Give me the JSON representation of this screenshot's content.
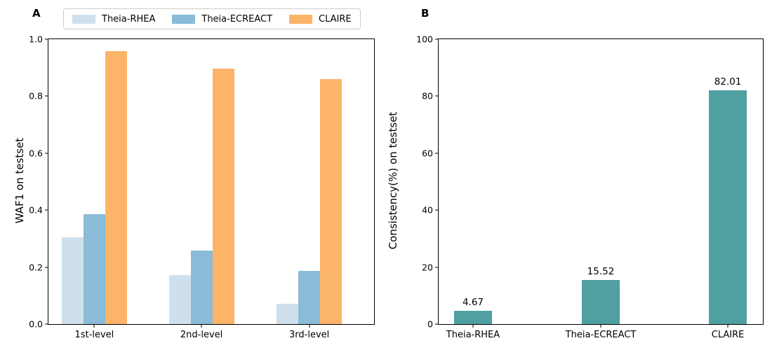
{
  "figure": {
    "background": "#ffffff",
    "axis_color": "#000000",
    "legend_border_color": "#cccccc"
  },
  "chart_data": [
    {
      "type": "bar",
      "panel_label": "A",
      "categories": [
        "1st-level",
        "2nd-level",
        "3rd-level"
      ],
      "series": [
        {
          "name": "Theia-RHEA",
          "color": "#cfe0ec",
          "values": [
            0.305,
            0.172,
            0.072
          ]
        },
        {
          "name": "Theia-ECREACT",
          "color": "#8abbd7",
          "values": [
            0.385,
            0.258,
            0.186
          ]
        },
        {
          "name": "CLAIRE",
          "color": "#fcb469",
          "values": [
            0.958,
            0.898,
            0.86
          ]
        }
      ],
      "xlabel": "",
      "ylabel": "WAF1 on testset",
      "ylim": [
        0,
        1.0
      ],
      "yticks": [
        "0.0",
        "0.2",
        "0.4",
        "0.6",
        "0.8",
        "1.0"
      ],
      "legend_position": "top",
      "grid": false
    },
    {
      "type": "bar",
      "panel_label": "B",
      "categories": [
        "Theia-RHEA",
        "Theia-ECREACT",
        "CLAIRE"
      ],
      "values": [
        4.67,
        15.52,
        82.01
      ],
      "value_labels": [
        "4.67",
        "15.52",
        "82.01"
      ],
      "bar_color": "#50a0a2",
      "xlabel": "",
      "ylabel": "Consistency(%) on testset",
      "ylim": [
        0,
        100
      ],
      "yticks": [
        "0",
        "20",
        "40",
        "60",
        "80",
        "100"
      ],
      "legend_position": "none",
      "grid": false
    }
  ]
}
